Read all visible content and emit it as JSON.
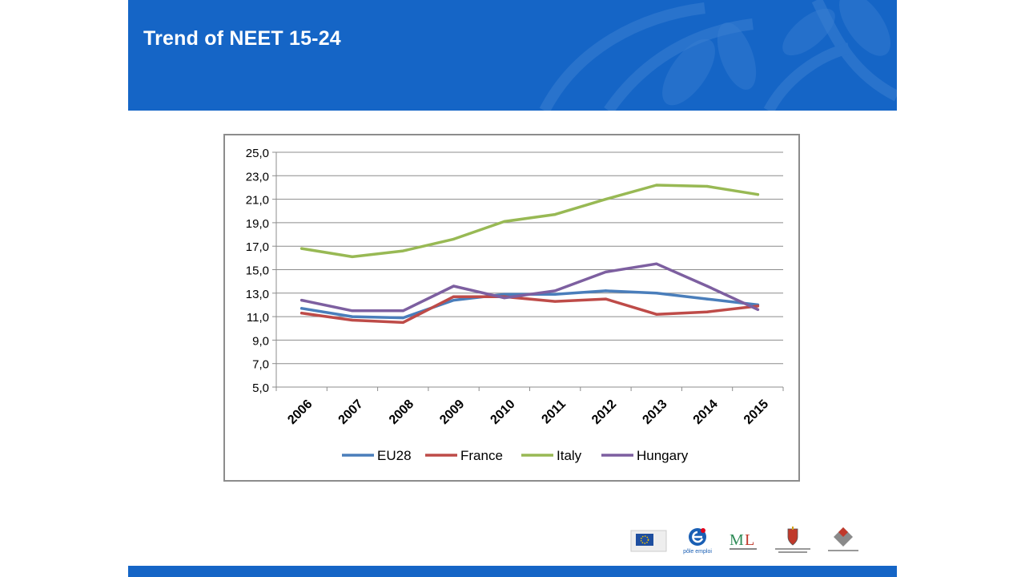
{
  "slide": {
    "title": "Trend of NEET 15-24"
  },
  "colors": {
    "header_bg": "#1565c6",
    "footer_bg": "#1565c6",
    "eu28": "#4a7ebb",
    "france": "#be4b48",
    "italy": "#98b954",
    "hungary": "#7d5fa0"
  },
  "chart_data": {
    "type": "line",
    "title": "",
    "xlabel": "",
    "ylabel": "",
    "x": [
      "2006",
      "2007",
      "2008",
      "2009",
      "2010",
      "2011",
      "2012",
      "2013",
      "2014",
      "2015"
    ],
    "ylim": [
      5.0,
      25.0
    ],
    "yticks": [
      "5,0",
      "7,0",
      "9,0",
      "11,0",
      "13,0",
      "15,0",
      "17,0",
      "19,0",
      "21,0",
      "23,0",
      "25,0"
    ],
    "grid": true,
    "legend_position": "bottom",
    "series": [
      {
        "name": "EU28",
        "color": "#4a7ebb",
        "values": [
          11.7,
          11.0,
          10.9,
          12.4,
          12.9,
          12.9,
          13.2,
          13.0,
          12.5,
          12.0
        ]
      },
      {
        "name": "France",
        "color": "#be4b48",
        "values": [
          11.3,
          10.7,
          10.5,
          12.7,
          12.7,
          12.3,
          12.5,
          11.2,
          11.4,
          11.9
        ]
      },
      {
        "name": "Italy",
        "color": "#98b954",
        "values": [
          16.8,
          16.1,
          16.6,
          17.6,
          19.1,
          19.7,
          21.0,
          22.2,
          22.1,
          21.4
        ]
      },
      {
        "name": "Hungary",
        "color": "#7d5fa0",
        "values": [
          12.4,
          11.5,
          11.5,
          13.6,
          12.6,
          13.2,
          14.8,
          15.5,
          13.6,
          11.6
        ]
      }
    ]
  },
  "logos": [
    {
      "icon": "eu-flag-logo"
    },
    {
      "icon": "pole-emploi-logo",
      "label": "pôle emploi"
    },
    {
      "icon": "ml-ministry-logo"
    },
    {
      "icon": "hungarian-coat-of-arms-logo"
    },
    {
      "icon": "diamond-logo"
    }
  ]
}
